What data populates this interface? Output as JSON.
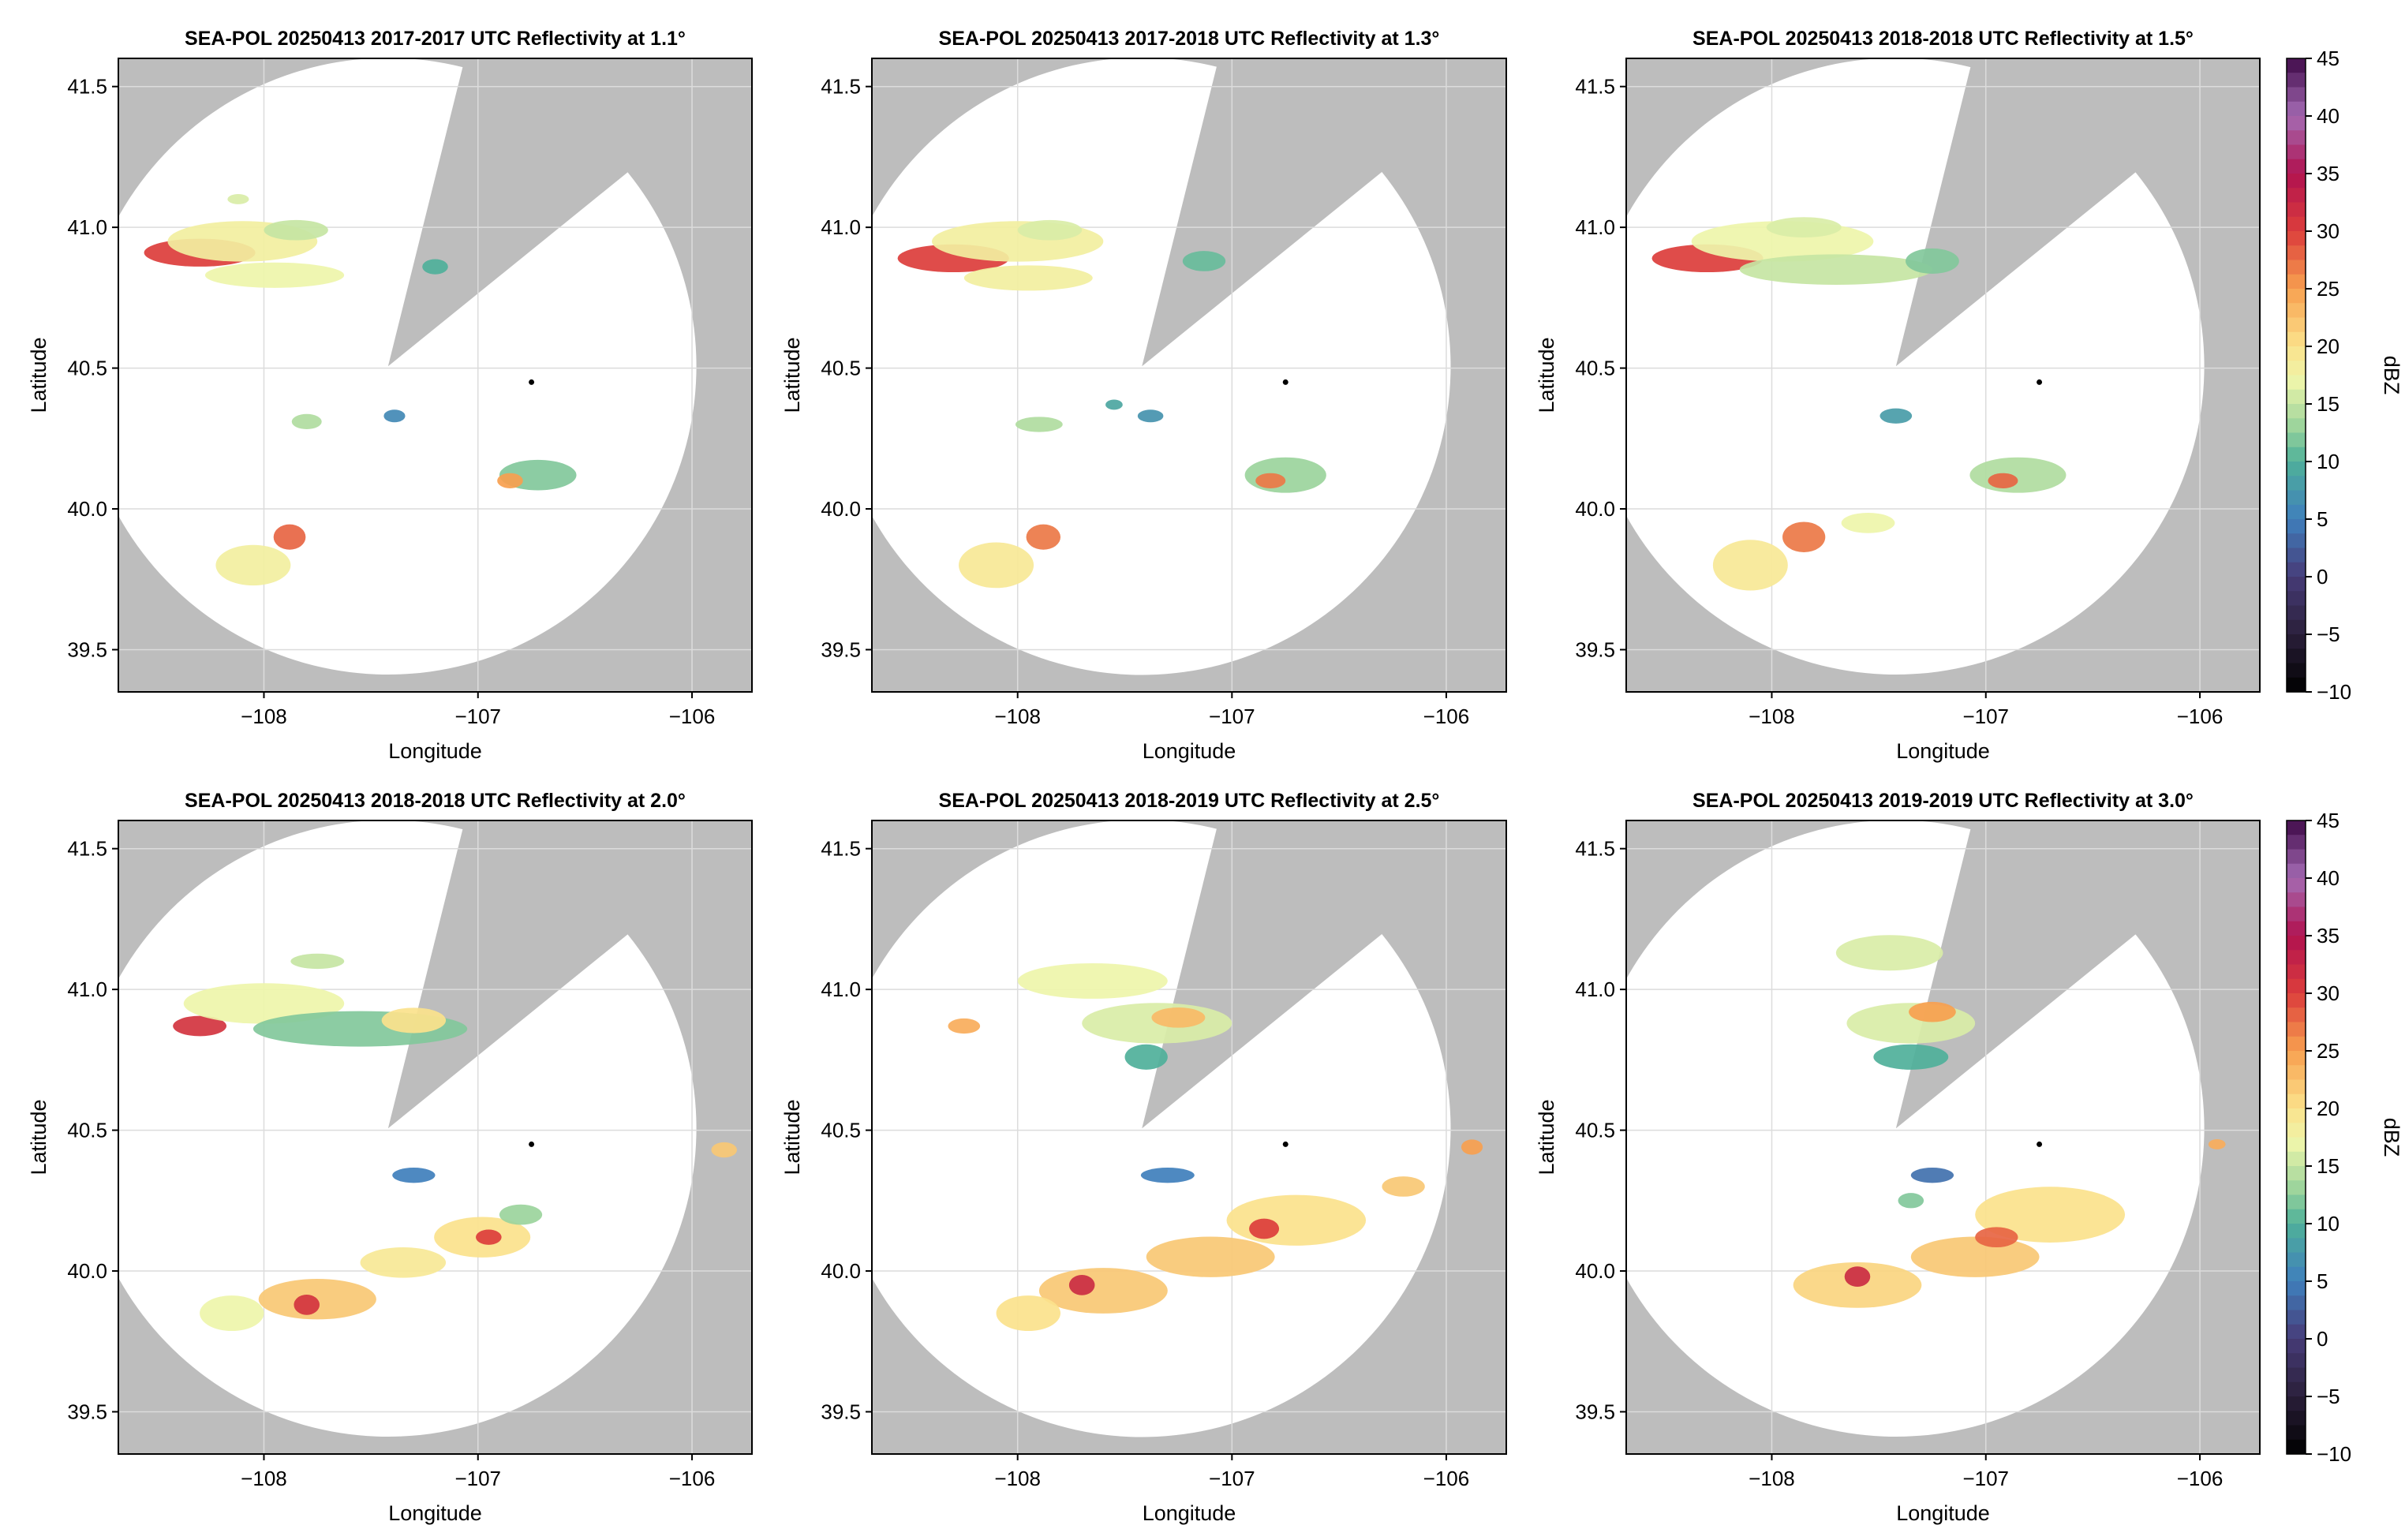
{
  "figure": {
    "colors": {
      "background": "#ffffff",
      "masked_area": "#bdbdbd",
      "radar_coverage": "#ffffff",
      "grid": "#dcdcdc",
      "radar_marker": "#000000"
    },
    "colorbar": {
      "label": "dBZ",
      "ticks": [
        "45",
        "40",
        "35",
        "30",
        "25",
        "20",
        "15",
        "10",
        "5",
        "0",
        "−5",
        "−10"
      ],
      "range": [
        -10,
        45
      ],
      "colormap": "spectral (reversed): dark purple high, red, orange, yellow, green, teal, blue, black low"
    }
  },
  "chart_data": [
    {
      "type": "heatmap",
      "title": "SEA-POL 20250413 2017-2017 UTC Reflectivity at 1.1°",
      "xlabel": "Longitude",
      "ylabel": "Latitude",
      "xticks": [
        "−108",
        "−107",
        "−106"
      ],
      "yticks": [
        "41.5",
        "41.0",
        "40.5",
        "40.0",
        "39.5"
      ],
      "xlim": [
        -108.68,
        -105.72
      ],
      "ylim": [
        39.35,
        41.6
      ],
      "radar_site": {
        "lon": -106.75,
        "lat": 40.45
      },
      "cells": [
        {
          "lon": -108.3,
          "lat": 40.91,
          "dlon": 0.52,
          "dlat": 0.055,
          "dbz": 30
        },
        {
          "lon": -108.1,
          "lat": 40.95,
          "dlon": 0.7,
          "dlat": 0.08,
          "dbz": 18
        },
        {
          "lon": -107.85,
          "lat": 40.99,
          "dlon": 0.3,
          "dlat": 0.04,
          "dbz": 15
        },
        {
          "lon": -107.95,
          "lat": 40.83,
          "dlon": 0.65,
          "dlat": 0.05,
          "dbz": 17
        },
        {
          "lon": -107.2,
          "lat": 40.86,
          "dlon": 0.12,
          "dlat": 0.03,
          "dbz": 10
        },
        {
          "lon": -107.88,
          "lat": 39.9,
          "dlon": 0.15,
          "dlat": 0.05,
          "dbz": 28
        },
        {
          "lon": -108.05,
          "lat": 39.8,
          "dlon": 0.35,
          "dlat": 0.08,
          "dbz": 18
        },
        {
          "lon": -106.72,
          "lat": 40.12,
          "dlon": 0.36,
          "dlat": 0.06,
          "dbz": 12
        },
        {
          "lon": -106.85,
          "lat": 40.1,
          "dlon": 0.12,
          "dlat": 0.03,
          "dbz": 25
        },
        {
          "lon": -107.39,
          "lat": 40.33,
          "dlon": 0.1,
          "dlat": 0.025,
          "dbz": 6
        },
        {
          "lon": -107.8,
          "lat": 40.31,
          "dlon": 0.14,
          "dlat": 0.03,
          "dbz": 14
        },
        {
          "lon": -108.12,
          "lat": 41.1,
          "dlon": 0.1,
          "dlat": 0.02,
          "dbz": 16
        }
      ]
    },
    {
      "type": "heatmap",
      "title": "SEA-POL 20250413 2017-2018 UTC Reflectivity at 1.3°",
      "xlabel": "Longitude",
      "ylabel": "Latitude",
      "xticks": [
        "−108",
        "−107",
        "−106"
      ],
      "yticks": [
        "41.5",
        "41.0",
        "40.5",
        "40.0",
        "39.5"
      ],
      "xlim": [
        -108.68,
        -105.72
      ],
      "ylim": [
        39.35,
        41.6
      ],
      "radar_site": {
        "lon": -106.75,
        "lat": 40.45
      },
      "cells": [
        {
          "lon": -108.3,
          "lat": 40.89,
          "dlon": 0.52,
          "dlat": 0.055,
          "dbz": 30
        },
        {
          "lon": -108.0,
          "lat": 40.95,
          "dlon": 0.8,
          "dlat": 0.08,
          "dbz": 18
        },
        {
          "lon": -107.85,
          "lat": 40.99,
          "dlon": 0.3,
          "dlat": 0.04,
          "dbz": 16
        },
        {
          "lon": -107.95,
          "lat": 40.82,
          "dlon": 0.6,
          "dlat": 0.05,
          "dbz": 18
        },
        {
          "lon": -107.13,
          "lat": 40.88,
          "dlon": 0.2,
          "dlat": 0.04,
          "dbz": 11
        },
        {
          "lon": -107.88,
          "lat": 39.9,
          "dlon": 0.16,
          "dlat": 0.05,
          "dbz": 27
        },
        {
          "lon": -108.1,
          "lat": 39.8,
          "dlon": 0.35,
          "dlat": 0.09,
          "dbz": 19
        },
        {
          "lon": -106.75,
          "lat": 40.12,
          "dlon": 0.38,
          "dlat": 0.07,
          "dbz": 13
        },
        {
          "lon": -106.82,
          "lat": 40.1,
          "dlon": 0.14,
          "dlat": 0.03,
          "dbz": 27
        },
        {
          "lon": -107.38,
          "lat": 40.33,
          "dlon": 0.12,
          "dlat": 0.025,
          "dbz": 7
        },
        {
          "lon": -107.9,
          "lat": 40.3,
          "dlon": 0.22,
          "dlat": 0.03,
          "dbz": 14
        },
        {
          "lon": -107.55,
          "lat": 40.37,
          "dlon": 0.08,
          "dlat": 0.02,
          "dbz": 9
        }
      ]
    },
    {
      "type": "heatmap",
      "title": "SEA-POL 20250413 2018-2018 UTC Reflectivity at 1.5°",
      "xlabel": "Longitude",
      "ylabel": "Latitude",
      "xticks": [
        "−108",
        "−107",
        "−106"
      ],
      "yticks": [
        "41.5",
        "41.0",
        "40.5",
        "40.0",
        "39.5"
      ],
      "xlim": [
        -108.68,
        -105.72
      ],
      "ylim": [
        39.35,
        41.6
      ],
      "radar_site": {
        "lon": -106.75,
        "lat": 40.45
      },
      "cells": [
        {
          "lon": -108.3,
          "lat": 40.89,
          "dlon": 0.52,
          "dlat": 0.055,
          "dbz": 30
        },
        {
          "lon": -107.95,
          "lat": 40.95,
          "dlon": 0.85,
          "dlat": 0.08,
          "dbz": 17
        },
        {
          "lon": -107.85,
          "lat": 41.0,
          "dlon": 0.35,
          "dlat": 0.04,
          "dbz": 16
        },
        {
          "lon": -107.7,
          "lat": 40.85,
          "dlon": 0.9,
          "dlat": 0.06,
          "dbz": 15
        },
        {
          "lon": -107.25,
          "lat": 40.88,
          "dlon": 0.25,
          "dlat": 0.05,
          "dbz": 12
        },
        {
          "lon": -107.85,
          "lat": 39.9,
          "dlon": 0.2,
          "dlat": 0.06,
          "dbz": 27
        },
        {
          "lon": -108.1,
          "lat": 39.8,
          "dlon": 0.35,
          "dlat": 0.1,
          "dbz": 19
        },
        {
          "lon": -106.85,
          "lat": 40.12,
          "dlon": 0.45,
          "dlat": 0.07,
          "dbz": 14
        },
        {
          "lon": -106.92,
          "lat": 40.1,
          "dlon": 0.14,
          "dlat": 0.03,
          "dbz": 28
        },
        {
          "lon": -107.42,
          "lat": 40.33,
          "dlon": 0.15,
          "dlat": 0.03,
          "dbz": 8
        },
        {
          "lon": -107.55,
          "lat": 39.95,
          "dlon": 0.25,
          "dlat": 0.04,
          "dbz": 17
        }
      ]
    },
    {
      "type": "heatmap",
      "title": "SEA-POL 20250413 2018-2018 UTC Reflectivity at 2.0°",
      "xlabel": "Longitude",
      "ylabel": "Latitude",
      "xticks": [
        "−108",
        "−107",
        "−106"
      ],
      "yticks": [
        "41.5",
        "41.0",
        "40.5",
        "40.0",
        "39.5"
      ],
      "xlim": [
        -108.68,
        -105.72
      ],
      "ylim": [
        39.35,
        41.6
      ],
      "radar_site": {
        "lon": -106.75,
        "lat": 40.45
      },
      "cells": [
        {
          "lon": -108.3,
          "lat": 40.87,
          "dlon": 0.25,
          "dlat": 0.04,
          "dbz": 31
        },
        {
          "lon": -108.0,
          "lat": 40.95,
          "dlon": 0.75,
          "dlat": 0.08,
          "dbz": 17
        },
        {
          "lon": -107.55,
          "lat": 40.86,
          "dlon": 1.0,
          "dlat": 0.07,
          "dbz": 12
        },
        {
          "lon": -107.3,
          "lat": 40.89,
          "dlon": 0.3,
          "dlat": 0.05,
          "dbz": 20
        },
        {
          "lon": -107.75,
          "lat": 41.1,
          "dlon": 0.25,
          "dlat": 0.03,
          "dbz": 15
        },
        {
          "lon": -106.98,
          "lat": 40.12,
          "dlon": 0.45,
          "dlat": 0.08,
          "dbz": 20
        },
        {
          "lon": -106.95,
          "lat": 40.12,
          "dlon": 0.12,
          "dlat": 0.03,
          "dbz": 30
        },
        {
          "lon": -107.35,
          "lat": 40.03,
          "dlon": 0.4,
          "dlat": 0.06,
          "dbz": 19
        },
        {
          "lon": -107.75,
          "lat": 39.9,
          "dlon": 0.55,
          "dlat": 0.08,
          "dbz": 22
        },
        {
          "lon": -107.8,
          "lat": 39.88,
          "dlon": 0.12,
          "dlat": 0.04,
          "dbz": 31
        },
        {
          "lon": -108.15,
          "lat": 39.85,
          "dlon": 0.3,
          "dlat": 0.07,
          "dbz": 17
        },
        {
          "lon": -107.3,
          "lat": 40.34,
          "dlon": 0.2,
          "dlat": 0.03,
          "dbz": 5
        },
        {
          "lon": -105.85,
          "lat": 40.43,
          "dlon": 0.12,
          "dlat": 0.03,
          "dbz": 22
        },
        {
          "lon": -106.8,
          "lat": 40.2,
          "dlon": 0.2,
          "dlat": 0.04,
          "dbz": 13
        }
      ]
    },
    {
      "type": "heatmap",
      "title": "SEA-POL 20250413 2018-2019 UTC Reflectivity at 2.5°",
      "xlabel": "Longitude",
      "ylabel": "Latitude",
      "xticks": [
        "−108",
        "−107",
        "−106"
      ],
      "yticks": [
        "41.5",
        "41.0",
        "40.5",
        "40.0",
        "39.5"
      ],
      "xlim": [
        -108.68,
        -105.72
      ],
      "ylim": [
        39.35,
        41.6
      ],
      "radar_site": {
        "lon": -106.75,
        "lat": 40.45
      },
      "cells": [
        {
          "lon": -108.25,
          "lat": 40.87,
          "dlon": 0.15,
          "dlat": 0.03,
          "dbz": 24
        },
        {
          "lon": -107.65,
          "lat": 41.03,
          "dlon": 0.7,
          "dlat": 0.07,
          "dbz": 17
        },
        {
          "lon": -107.35,
          "lat": 40.88,
          "dlon": 0.7,
          "dlat": 0.08,
          "dbz": 16
        },
        {
          "lon": -107.25,
          "lat": 40.9,
          "dlon": 0.25,
          "dlat": 0.04,
          "dbz": 23
        },
        {
          "lon": -107.4,
          "lat": 40.76,
          "dlon": 0.2,
          "dlat": 0.05,
          "dbz": 10
        },
        {
          "lon": -106.7,
          "lat": 40.18,
          "dlon": 0.65,
          "dlat": 0.1,
          "dbz": 20
        },
        {
          "lon": -107.1,
          "lat": 40.05,
          "dlon": 0.6,
          "dlat": 0.08,
          "dbz": 22
        },
        {
          "lon": -107.6,
          "lat": 39.93,
          "dlon": 0.6,
          "dlat": 0.09,
          "dbz": 22
        },
        {
          "lon": -107.7,
          "lat": 39.95,
          "dlon": 0.12,
          "dlat": 0.04,
          "dbz": 32
        },
        {
          "lon": -106.85,
          "lat": 40.15,
          "dlon": 0.14,
          "dlat": 0.04,
          "dbz": 30
        },
        {
          "lon": -107.95,
          "lat": 39.85,
          "dlon": 0.3,
          "dlat": 0.07,
          "dbz": 20
        },
        {
          "lon": -107.3,
          "lat": 40.34,
          "dlon": 0.25,
          "dlat": 0.03,
          "dbz": 5
        },
        {
          "lon": -105.88,
          "lat": 40.44,
          "dlon": 0.1,
          "dlat": 0.03,
          "dbz": 25
        },
        {
          "lon": -106.2,
          "lat": 40.3,
          "dlon": 0.2,
          "dlat": 0.04,
          "dbz": 22
        }
      ]
    },
    {
      "type": "heatmap",
      "title": "SEA-POL 20250413 2019-2019 UTC Reflectivity at 3.0°",
      "xlabel": "Longitude",
      "ylabel": "Latitude",
      "xticks": [
        "−108",
        "−107",
        "−106"
      ],
      "yticks": [
        "41.5",
        "41.0",
        "40.5",
        "40.0",
        "39.5"
      ],
      "xlim": [
        -108.68,
        -105.72
      ],
      "ylim": [
        39.35,
        41.6
      ],
      "radar_site": {
        "lon": -106.75,
        "lat": 40.45
      },
      "cells": [
        {
          "lon": -107.45,
          "lat": 41.13,
          "dlon": 0.5,
          "dlat": 0.07,
          "dbz": 16
        },
        {
          "lon": -107.35,
          "lat": 40.88,
          "dlon": 0.6,
          "dlat": 0.08,
          "dbz": 16
        },
        {
          "lon": -107.25,
          "lat": 40.92,
          "dlon": 0.22,
          "dlat": 0.04,
          "dbz": 25
        },
        {
          "lon": -107.35,
          "lat": 40.76,
          "dlon": 0.35,
          "dlat": 0.05,
          "dbz": 10
        },
        {
          "lon": -106.7,
          "lat": 40.2,
          "dlon": 0.7,
          "dlat": 0.11,
          "dbz": 20
        },
        {
          "lon": -107.05,
          "lat": 40.05,
          "dlon": 0.6,
          "dlat": 0.08,
          "dbz": 22
        },
        {
          "lon": -107.6,
          "lat": 39.95,
          "dlon": 0.6,
          "dlat": 0.09,
          "dbz": 21
        },
        {
          "lon": -107.6,
          "lat": 39.98,
          "dlon": 0.12,
          "dlat": 0.04,
          "dbz": 32
        },
        {
          "lon": -106.95,
          "lat": 40.12,
          "dlon": 0.2,
          "dlat": 0.04,
          "dbz": 28
        },
        {
          "lon": -107.25,
          "lat": 40.34,
          "dlon": 0.2,
          "dlat": 0.03,
          "dbz": 4
        },
        {
          "lon": -107.35,
          "lat": 40.25,
          "dlon": 0.12,
          "dlat": 0.03,
          "dbz": 12
        },
        {
          "lon": -105.92,
          "lat": 40.45,
          "dlon": 0.08,
          "dlat": 0.02,
          "dbz": 24
        }
      ]
    }
  ]
}
